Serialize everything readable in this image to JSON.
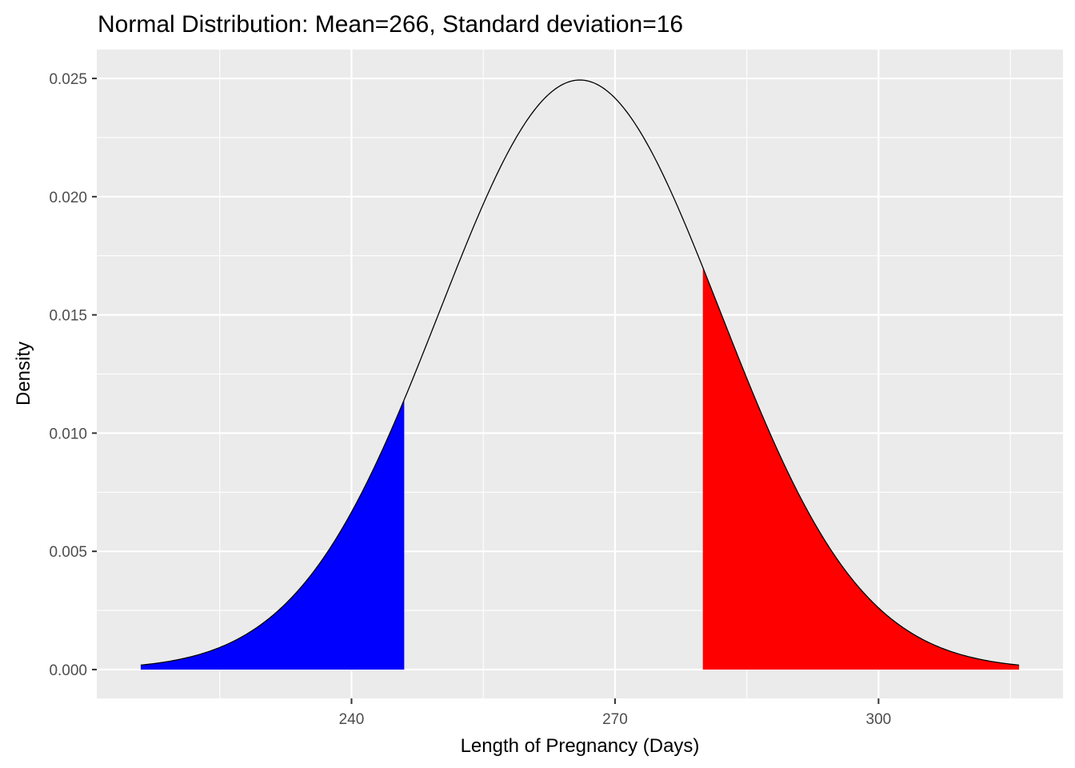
{
  "chart_data": {
    "type": "area",
    "title": "Normal Distribution:  Mean=266, Standard deviation=16",
    "xlabel": "Length of Pregnancy (Days)",
    "ylabel": "Density",
    "distribution": {
      "mean": 266,
      "sd": 16
    },
    "curve_range": [
      216,
      316
    ],
    "xlim": [
      211,
      321
    ],
    "ylim": [
      -0.00122,
      0.02622
    ],
    "x_ticks": [
      240,
      270,
      300
    ],
    "x_tick_labels": [
      "240",
      "270",
      "300"
    ],
    "x_minor_ticks": [
      225,
      255,
      285,
      315
    ],
    "y_ticks": [
      0.0,
      0.005,
      0.01,
      0.015,
      0.02,
      0.025
    ],
    "y_tick_labels": [
      "0.000",
      "0.005",
      "0.010",
      "0.015",
      "0.020",
      "0.025"
    ],
    "y_minor_ticks": [
      0.0025,
      0.0075,
      0.0125,
      0.0175,
      0.0225
    ],
    "shaded_regions": [
      {
        "name": "lower-tail",
        "from": 216,
        "to": 246,
        "color": "#0000ff"
      },
      {
        "name": "upper-tail",
        "from": 280,
        "to": 316,
        "color": "#ff0000"
      }
    ],
    "curve_color": "#000000",
    "panel_background": "#ebebeb",
    "grid_color": "#ffffff",
    "grid": true,
    "legend": "none"
  }
}
